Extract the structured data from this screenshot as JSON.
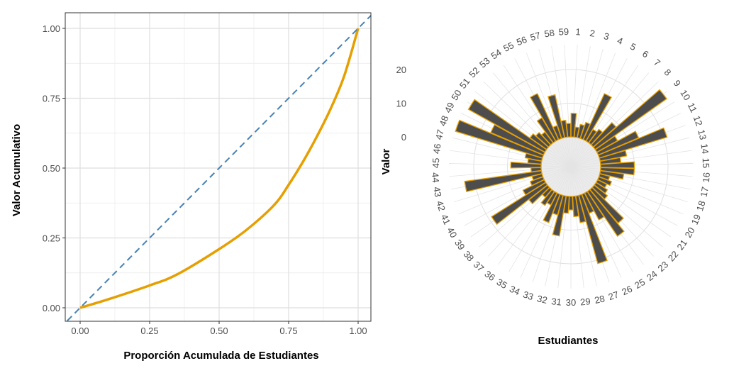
{
  "chart_data": [
    {
      "type": "line",
      "xlabel": "Proporción Acumulada de Estudiantes",
      "ylabel": "Valor Acumulativo",
      "xlim": [
        0,
        1
      ],
      "ylim": [
        0,
        1
      ],
      "xticks": [
        "0.00",
        "0.25",
        "0.50",
        "0.75",
        "1.00"
      ],
      "yticks": [
        "0.00",
        "0.25",
        "0.50",
        "0.75",
        "1.00"
      ],
      "grid": true,
      "series": [
        {
          "style": "solid",
          "color": "#E69F00",
          "x": [
            0,
            0.1,
            0.25,
            0.35,
            0.5,
            0.6,
            0.7,
            0.75,
            0.8,
            0.85,
            0.9,
            0.95,
            1
          ],
          "y": [
            0,
            0.03,
            0.08,
            0.12,
            0.21,
            0.28,
            0.37,
            0.44,
            0.52,
            0.61,
            0.71,
            0.83,
            1
          ]
        },
        {
          "style": "dashed",
          "color": "#4682B4",
          "x": [
            0,
            1
          ],
          "y": [
            0,
            1
          ]
        }
      ]
    },
    {
      "type": "bar",
      "polar": true,
      "xlabel": "Estudiantes",
      "ylabel": "Valor",
      "rticks": [
        "0",
        "10",
        "20"
      ],
      "bar_fill": "#4D4D4D",
      "bar_outline": "#E69F00",
      "categories": [
        "1",
        "2",
        "3",
        "4",
        "5",
        "6",
        "7",
        "8",
        "9",
        "10",
        "11",
        "12",
        "13",
        "14",
        "15",
        "16",
        "17",
        "18",
        "19",
        "20",
        "21",
        "22",
        "23",
        "24",
        "25",
        "26",
        "27",
        "28",
        "29",
        "30",
        "31",
        "32",
        "33",
        "34",
        "35",
        "36",
        "37",
        "38",
        "39",
        "40",
        "41",
        "42",
        "43",
        "44",
        "45",
        "46",
        "47",
        "48",
        "49",
        "50",
        "51",
        "52",
        "53",
        "54",
        "55",
        "56",
        "57",
        "58",
        "59"
      ],
      "values": [
        7,
        3,
        4,
        5,
        15,
        4,
        5,
        9,
        26,
        7,
        13,
        21,
        8,
        6,
        10,
        10,
        7,
        3,
        4,
        3,
        4,
        5,
        13,
        16,
        9,
        6,
        21,
        8,
        6,
        4,
        5,
        12,
        6,
        9,
        4,
        5,
        3,
        7,
        19,
        7,
        4,
        3,
        23,
        3,
        9,
        4,
        5,
        27,
        17,
        26,
        6,
        5,
        4,
        8,
        15,
        4,
        13,
        5,
        4
      ]
    }
  ]
}
